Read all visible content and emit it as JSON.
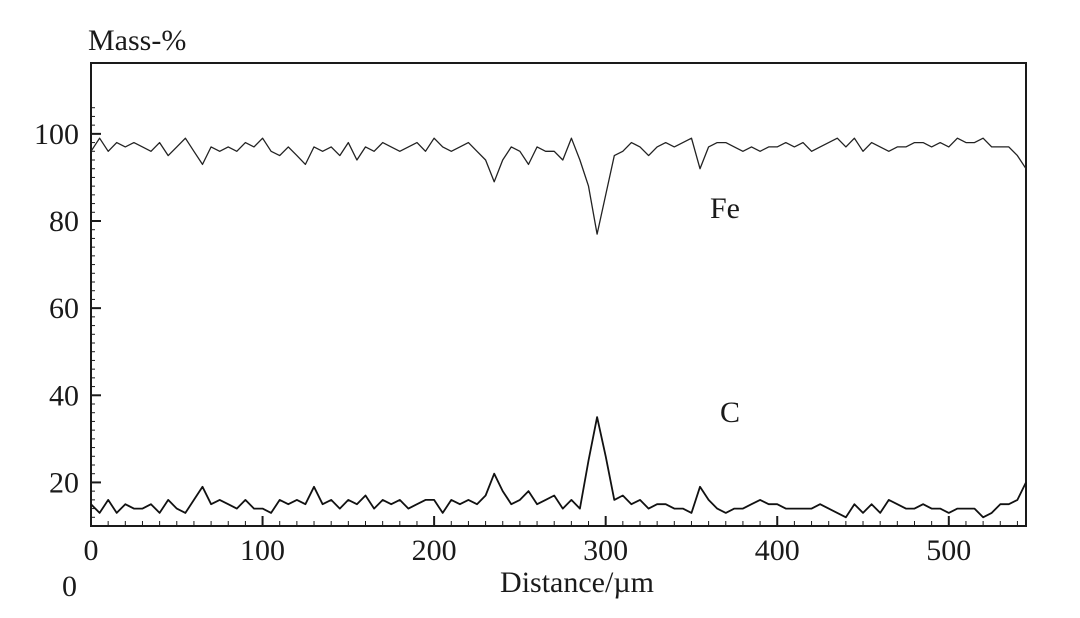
{
  "chart_data": {
    "type": "line",
    "title": "",
    "xlabel": "Distance/µm",
    "ylabel": "Mass-%",
    "xlim": [
      0,
      545
    ],
    "ylim": [
      10,
      108
    ],
    "x_ticks": [
      0,
      100,
      200,
      300,
      400,
      500
    ],
    "y_ticks": [
      20,
      40,
      60,
      80,
      100
    ],
    "y_zero_label": "0",
    "grid": false,
    "series": [
      {
        "name": "Fe",
        "color": "#222222",
        "x": [
          0,
          5,
          10,
          15,
          20,
          25,
          30,
          35,
          40,
          45,
          50,
          55,
          60,
          65,
          70,
          75,
          80,
          85,
          90,
          95,
          100,
          105,
          110,
          115,
          120,
          125,
          130,
          135,
          140,
          145,
          150,
          155,
          160,
          165,
          170,
          175,
          180,
          185,
          190,
          195,
          200,
          205,
          210,
          215,
          220,
          225,
          230,
          235,
          240,
          245,
          250,
          255,
          260,
          265,
          270,
          275,
          280,
          285,
          290,
          295,
          300,
          305,
          310,
          315,
          320,
          325,
          330,
          335,
          340,
          345,
          350,
          355,
          360,
          365,
          370,
          375,
          380,
          385,
          390,
          395,
          400,
          405,
          410,
          415,
          420,
          425,
          430,
          435,
          440,
          445,
          450,
          455,
          460,
          465,
          470,
          475,
          480,
          485,
          490,
          495,
          500,
          505,
          510,
          515,
          520,
          525,
          530,
          535,
          540,
          545
        ],
        "values": [
          96,
          99,
          96,
          98,
          97,
          98,
          97,
          96,
          98,
          95,
          97,
          99,
          96,
          93,
          97,
          96,
          97,
          96,
          98,
          97,
          99,
          96,
          95,
          97,
          95,
          93,
          97,
          96,
          97,
          95,
          98,
          94,
          97,
          96,
          98,
          97,
          96,
          97,
          98,
          96,
          99,
          97,
          96,
          97,
          98,
          96,
          94,
          89,
          94,
          97,
          96,
          93,
          97,
          96,
          96,
          94,
          99,
          94,
          88,
          77,
          86,
          95,
          96,
          98,
          97,
          95,
          97,
          98,
          97,
          98,
          99,
          92,
          97,
          98,
          98,
          97,
          96,
          97,
          96,
          97,
          97,
          98,
          97,
          98,
          96,
          97,
          98,
          99,
          97,
          99,
          96,
          98,
          97,
          96,
          97,
          97,
          98,
          98,
          97,
          98,
          97,
          99,
          98,
          98,
          99,
          97,
          97,
          97,
          95,
          92
        ]
      },
      {
        "name": "C",
        "color": "#111111",
        "x": [
          0,
          5,
          10,
          15,
          20,
          25,
          30,
          35,
          40,
          45,
          50,
          55,
          60,
          65,
          70,
          75,
          80,
          85,
          90,
          95,
          100,
          105,
          110,
          115,
          120,
          125,
          130,
          135,
          140,
          145,
          150,
          155,
          160,
          165,
          170,
          175,
          180,
          185,
          190,
          195,
          200,
          205,
          210,
          215,
          220,
          225,
          230,
          235,
          240,
          245,
          250,
          255,
          260,
          265,
          270,
          275,
          280,
          285,
          290,
          295,
          300,
          305,
          310,
          315,
          320,
          325,
          330,
          335,
          340,
          345,
          350,
          355,
          360,
          365,
          370,
          375,
          380,
          385,
          390,
          395,
          400,
          405,
          410,
          415,
          420,
          425,
          430,
          435,
          440,
          445,
          450,
          455,
          460,
          465,
          470,
          475,
          480,
          485,
          490,
          495,
          500,
          505,
          510,
          515,
          520,
          525,
          530,
          535,
          540,
          545
        ],
        "values": [
          15,
          13,
          16,
          13,
          15,
          14,
          14,
          15,
          13,
          16,
          14,
          13,
          16,
          19,
          15,
          16,
          15,
          14,
          16,
          14,
          14,
          13,
          16,
          15,
          16,
          15,
          19,
          15,
          16,
          14,
          16,
          15,
          17,
          14,
          16,
          15,
          16,
          14,
          15,
          16,
          16,
          13,
          16,
          15,
          16,
          15,
          17,
          22,
          18,
          15,
          16,
          18,
          15,
          16,
          17,
          14,
          16,
          14,
          25,
          35,
          26,
          16,
          17,
          15,
          16,
          14,
          15,
          15,
          14,
          14,
          13,
          19,
          16,
          14,
          13,
          14,
          14,
          15,
          16,
          15,
          15,
          14,
          14,
          14,
          14,
          15,
          14,
          13,
          12,
          15,
          13,
          15,
          13,
          16,
          15,
          14,
          14,
          15,
          14,
          14,
          13,
          14,
          14,
          14,
          12,
          13,
          15,
          15,
          16,
          20
        ]
      }
    ]
  }
}
